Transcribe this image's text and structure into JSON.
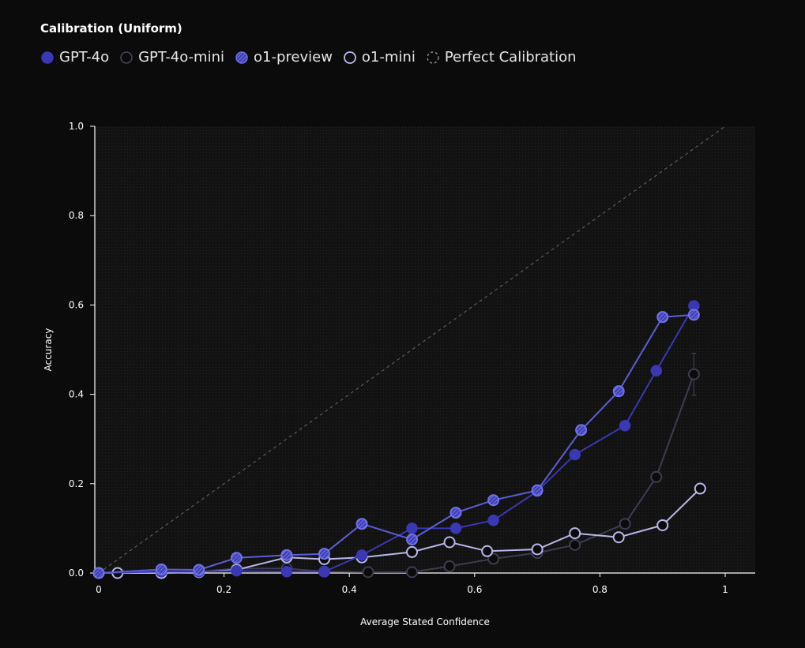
{
  "chart_data": {
    "type": "line",
    "title": "Calibration (Uniform)",
    "xlabel": "Average Stated Confidence",
    "ylabel": "Accuracy",
    "xlim": [
      0,
      1.05
    ],
    "ylim": [
      0,
      1.0
    ],
    "xticks": [
      0,
      0.2,
      0.4,
      0.6,
      0.8,
      1
    ],
    "xtick_labels": [
      "0",
      "0.2",
      "0.4",
      "0.6",
      "0.8",
      "1"
    ],
    "yticks": [
      0,
      0.2,
      0.4,
      0.6,
      0.8,
      1.0
    ],
    "ytick_labels": [
      "0.0",
      "0.2",
      "0.4",
      "0.6",
      "0.8",
      "1.0"
    ],
    "grid": false,
    "legend_position": "top-left",
    "reference_line": {
      "name": "Perfect Calibration",
      "style": "dashed",
      "color": "#5a5a5a",
      "x": [
        0,
        1
      ],
      "y": [
        0,
        1
      ]
    },
    "series": [
      {
        "name": "GPT-4o",
        "marker": "filled",
        "color": "#3a38b4",
        "fill": "#3a38b4",
        "x": [
          0.0,
          0.1,
          0.16,
          0.22,
          0.3,
          0.36,
          0.42,
          0.5,
          0.57,
          0.63,
          0.7,
          0.76,
          0.84,
          0.89,
          0.95
        ],
        "y": [
          0.0,
          0.003,
          0.003,
          0.005,
          0.003,
          0.003,
          0.04,
          0.1,
          0.1,
          0.118,
          0.183,
          0.265,
          0.33,
          0.453,
          0.598
        ],
        "err": [
          0,
          0,
          0,
          0,
          0,
          0,
          0.008,
          0.01,
          0.008,
          0,
          0,
          0,
          0,
          0,
          0.01
        ]
      },
      {
        "name": "GPT-4o-mini",
        "marker": "hollow",
        "color": "#3d3d52",
        "fill": "#0b0b0b",
        "x": [
          0.0,
          0.1,
          0.16,
          0.22,
          0.3,
          0.36,
          0.43,
          0.5,
          0.56,
          0.63,
          0.7,
          0.76,
          0.84,
          0.89,
          0.95
        ],
        "y": [
          0.0,
          0.0,
          0.003,
          0.01,
          0.01,
          0.003,
          0.002,
          0.002,
          0.015,
          0.032,
          0.045,
          0.063,
          0.11,
          0.215,
          0.445
        ],
        "err": [
          0,
          0,
          0,
          0,
          0,
          0,
          0,
          0,
          0,
          0,
          0,
          0,
          0,
          0,
          0.047
        ]
      },
      {
        "name": "o1-preview",
        "marker": "hatched",
        "color": "#5b5ed6",
        "fill": "#3f40b8",
        "x": [
          0.0,
          0.1,
          0.16,
          0.22,
          0.3,
          0.36,
          0.42,
          0.5,
          0.57,
          0.63,
          0.7,
          0.77,
          0.83,
          0.9,
          0.95
        ],
        "y": [
          0.0,
          0.008,
          0.007,
          0.034,
          0.04,
          0.043,
          0.11,
          0.075,
          0.135,
          0.163,
          0.185,
          0.32,
          0.407,
          0.573,
          0.578
        ],
        "err": [
          0,
          0,
          0,
          0,
          0,
          0.01,
          0.01,
          0,
          0.008,
          0,
          0,
          0,
          0,
          0,
          0
        ]
      },
      {
        "name": "o1-mini",
        "marker": "hollow",
        "color": "#b9b8ec",
        "fill": "#0b0b0b",
        "x": [
          0.0,
          0.03,
          0.1,
          0.16,
          0.22,
          0.3,
          0.36,
          0.42,
          0.5,
          0.56,
          0.62,
          0.7,
          0.76,
          0.83,
          0.9,
          0.96
        ],
        "y": [
          0.0,
          0.0,
          0.0,
          0.002,
          0.007,
          0.035,
          0.031,
          0.035,
          0.047,
          0.069,
          0.049,
          0.053,
          0.089,
          0.08,
          0.107,
          0.189
        ],
        "err": [
          0,
          0,
          0,
          0,
          0,
          0,
          0,
          0,
          0,
          0,
          0,
          0,
          0,
          0,
          0,
          0
        ]
      }
    ]
  }
}
